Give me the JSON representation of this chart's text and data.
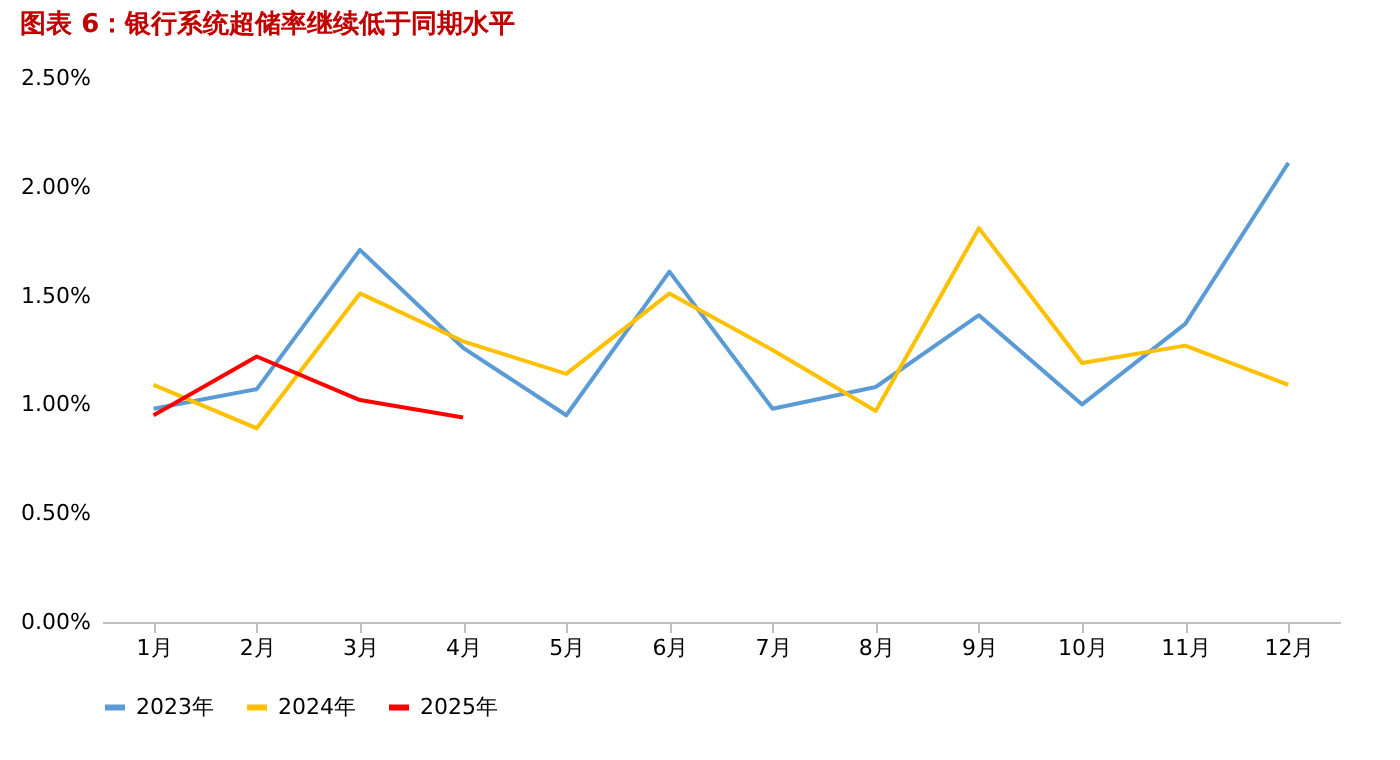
{
  "chart_data": {
    "type": "line",
    "title": "图表 6：银行系统超储率继续低于同期水平",
    "categories": [
      "1月",
      "2月",
      "3月",
      "4月",
      "5月",
      "6月",
      "7月",
      "8月",
      "9月",
      "10月",
      "11月",
      "12月"
    ],
    "series": [
      {
        "name": "2023年",
        "color": "#5b9bd5",
        "values": [
          0.98,
          1.07,
          1.71,
          1.26,
          0.95,
          1.61,
          0.98,
          1.08,
          1.41,
          1.0,
          1.37,
          2.11
        ]
      },
      {
        "name": "2024年",
        "color": "#ffc000",
        "values": [
          1.09,
          0.89,
          1.51,
          1.29,
          1.14,
          1.51,
          1.25,
          0.97,
          1.81,
          1.19,
          1.27,
          1.09
        ]
      },
      {
        "name": "2025年",
        "color": "#ff0000",
        "values": [
          0.95,
          1.22,
          1.02,
          0.94,
          null,
          null,
          null,
          null,
          null,
          null,
          null,
          null
        ]
      }
    ],
    "ylim": [
      0,
      2.5
    ],
    "yticks": [
      {
        "value": 0,
        "label": "0.00%"
      },
      {
        "value": 0.5,
        "label": "0.50%"
      },
      {
        "value": 1,
        "label": "1.00%"
      },
      {
        "value": 1.5,
        "label": "1.50%"
      },
      {
        "value": 2,
        "label": "2.00%"
      },
      {
        "value": 2.5,
        "label": "2.50%"
      }
    ],
    "grid": false,
    "legend": "bottom"
  }
}
